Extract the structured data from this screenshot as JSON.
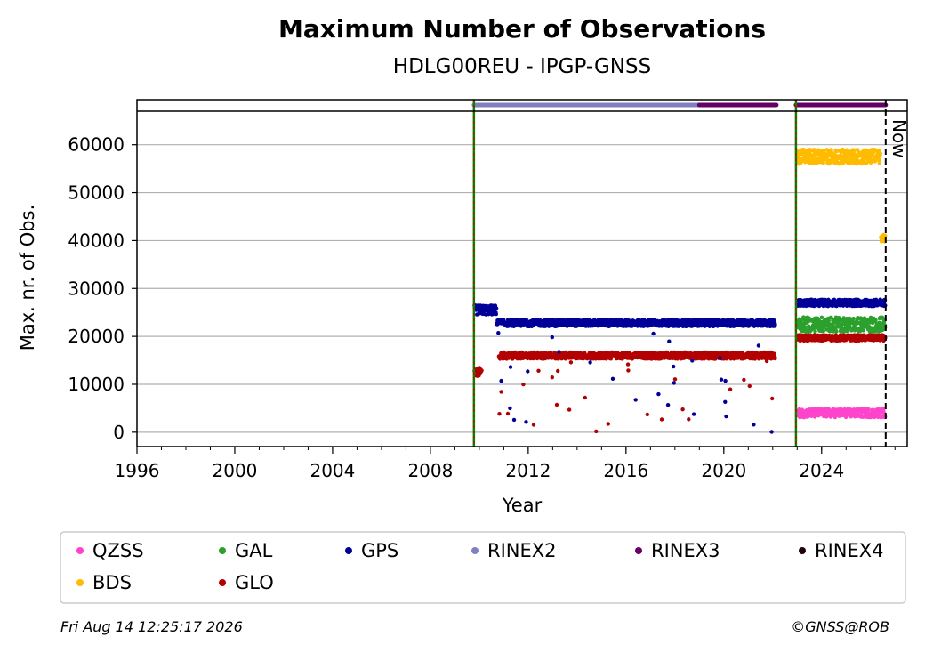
{
  "chart_data": {
    "type": "scatter",
    "title": "Maximum Number of Observations",
    "subtitle": "HDLG00REU - IPGP-GNSS",
    "xlabel": "Year",
    "ylabel": "Max. nr. of Obs.",
    "xlim": [
      1996,
      2027.5
    ],
    "ylim": [
      -3000,
      67000
    ],
    "x_ticks": [
      "1996",
      "2000",
      "2004",
      "2008",
      "2012",
      "2016",
      "2020",
      "2024"
    ],
    "y_ticks": [
      "0",
      "10000",
      "20000",
      "30000",
      "40000",
      "50000",
      "60000"
    ],
    "now_marker": {
      "x": 2026.62,
      "label": "Now"
    },
    "vertical_markers": [
      2009.78,
      2022.95
    ],
    "rinex_bar": [
      {
        "name": "RINEX2",
        "start": 2009.78,
        "end": 2019.0
      },
      {
        "name": "RINEX3",
        "start": 2019.0,
        "end": 2022.15
      },
      {
        "name": "RINEX3",
        "start": 2022.95,
        "end": 2026.62
      }
    ],
    "series": [
      {
        "name": "QZSS",
        "segments": [
          {
            "start": 2023.0,
            "end": 2026.6,
            "level": 4000,
            "noise": 900
          }
        ]
      },
      {
        "name": "BDS",
        "segments": [
          {
            "start": 2023.0,
            "end": 2026.4,
            "level": 57500,
            "noise": 1500
          },
          {
            "start": 2026.42,
            "end": 2026.6,
            "level": 40500,
            "noise": 700
          }
        ]
      },
      {
        "name": "GAL",
        "segments": [
          {
            "start": 2023.0,
            "end": 2026.6,
            "level": 22500,
            "noise": 1500
          }
        ]
      },
      {
        "name": "GLO",
        "segments": [
          {
            "start": 2009.8,
            "end": 2010.1,
            "level": 12500,
            "noise": 1000
          },
          {
            "start": 2010.8,
            "end": 2022.1,
            "level": 16000,
            "noise": 700
          },
          {
            "start": 2023.0,
            "end": 2026.6,
            "level": 19700,
            "noise": 600
          }
        ]
      },
      {
        "name": "GPS",
        "segments": [
          {
            "start": 2009.8,
            "end": 2010.7,
            "level": 25500,
            "noise": 1000
          },
          {
            "start": 2010.7,
            "end": 2022.1,
            "level": 22800,
            "noise": 700
          },
          {
            "start": 2023.0,
            "end": 2026.6,
            "level": 27000,
            "noise": 700
          }
        ]
      }
    ]
  },
  "legend": {
    "items": [
      {
        "label": "QZSS",
        "color": "#ff44cc"
      },
      {
        "label": "GAL",
        "color": "#2ca02c"
      },
      {
        "label": "GPS",
        "color": "#000099"
      },
      {
        "label": "RINEX2",
        "color": "#8080c0"
      },
      {
        "label": "RINEX3",
        "color": "#660066"
      },
      {
        "label": "RINEX4",
        "color": "#220011"
      },
      {
        "label": "BDS",
        "color": "#ffbb00"
      },
      {
        "label": "GLO",
        "color": "#b30000"
      }
    ]
  },
  "colors": {
    "QZSS": "#ff44cc",
    "BDS": "#ffbb00",
    "GAL": "#2ca02c",
    "GLO": "#b30000",
    "GPS": "#000099",
    "RINEX2": "#8080c0",
    "RINEX3": "#660066",
    "RINEX4": "#220011",
    "marker": "#008800",
    "marker_dash": "#cc0000"
  },
  "footer": {
    "timestamp": "Fri Aug 14 12:25:17 2026",
    "credit": "©GNSS@ROB"
  }
}
